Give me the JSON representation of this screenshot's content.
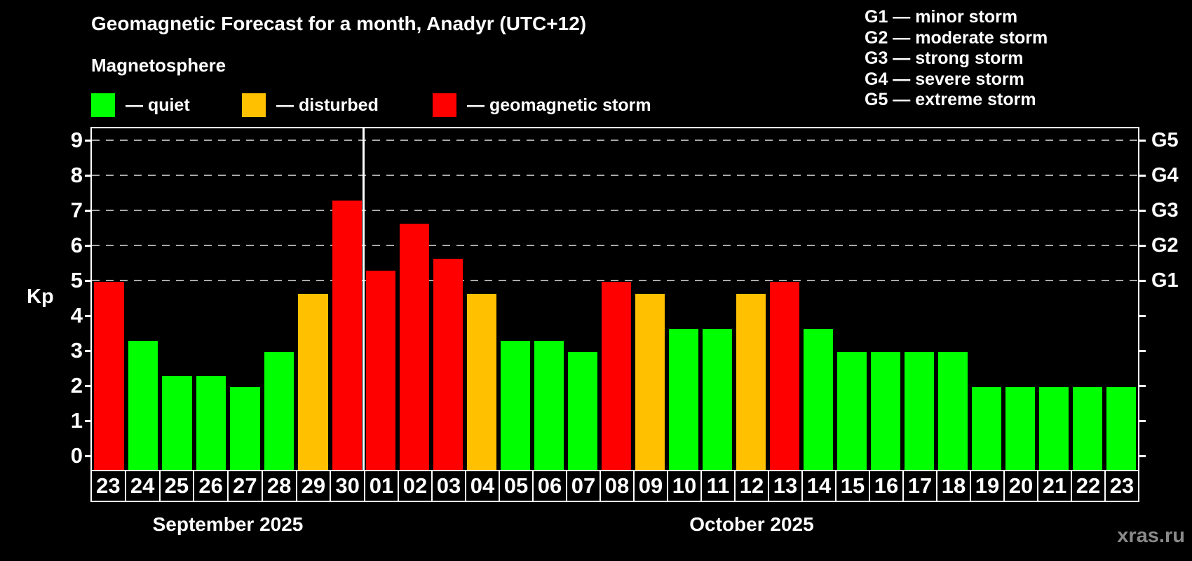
{
  "header": {
    "title": "Geomagnetic Forecast for a month, Anadyr (UTC+12)",
    "subtitle": "Magnetosphere"
  },
  "legend": {
    "quiet": {
      "label": "— quiet",
      "color": "#00ff00"
    },
    "disturbed": {
      "label": "— disturbed",
      "color": "#ffc000"
    },
    "storm": {
      "label": "— geomagnetic storm",
      "color": "#ff0000"
    }
  },
  "g_legend": [
    "G1 — minor storm",
    "G2 — moderate storm",
    "G3 — strong storm",
    "G4 — severe storm",
    "G5 — extreme storm"
  ],
  "axis": {
    "y_label": "Kp",
    "y_ticks": [
      0,
      1,
      2,
      3,
      4,
      5,
      6,
      7,
      8,
      9
    ],
    "gridline_kp": [
      5,
      6,
      7,
      8,
      9
    ],
    "g_labels": [
      {
        "label": "G1",
        "kp": 5
      },
      {
        "label": "G2",
        "kp": 6
      },
      {
        "label": "G3",
        "kp": 7
      },
      {
        "label": "G4",
        "kp": 8
      },
      {
        "label": "G5",
        "kp": 9
      }
    ]
  },
  "status_colors": {
    "quiet": "#00ff00",
    "disturbed": "#ffc000",
    "storm": "#ff0000"
  },
  "months": [
    {
      "name": "September 2025",
      "days": [
        {
          "day": "23",
          "value": 5.0,
          "status": "storm"
        },
        {
          "day": "24",
          "value": 3.33,
          "status": "quiet"
        },
        {
          "day": "25",
          "value": 2.33,
          "status": "quiet"
        },
        {
          "day": "26",
          "value": 2.33,
          "status": "quiet"
        },
        {
          "day": "27",
          "value": 2.0,
          "status": "quiet"
        },
        {
          "day": "28",
          "value": 3.0,
          "status": "quiet"
        },
        {
          "day": "29",
          "value": 4.67,
          "status": "disturbed"
        },
        {
          "day": "30",
          "value": 7.33,
          "status": "storm"
        }
      ]
    },
    {
      "name": "October 2025",
      "days": [
        {
          "day": "01",
          "value": 5.33,
          "status": "storm"
        },
        {
          "day": "02",
          "value": 6.67,
          "status": "storm"
        },
        {
          "day": "03",
          "value": 5.67,
          "status": "storm"
        },
        {
          "day": "04",
          "value": 4.67,
          "status": "disturbed"
        },
        {
          "day": "05",
          "value": 3.33,
          "status": "quiet"
        },
        {
          "day": "06",
          "value": 3.33,
          "status": "quiet"
        },
        {
          "day": "07",
          "value": 3.0,
          "status": "quiet"
        },
        {
          "day": "08",
          "value": 5.0,
          "status": "storm"
        },
        {
          "day": "09",
          "value": 4.67,
          "status": "disturbed"
        },
        {
          "day": "10",
          "value": 3.67,
          "status": "quiet"
        },
        {
          "day": "11",
          "value": 3.67,
          "status": "quiet"
        },
        {
          "day": "12",
          "value": 4.67,
          "status": "disturbed"
        },
        {
          "day": "13",
          "value": 5.0,
          "status": "storm"
        },
        {
          "day": "14",
          "value": 3.67,
          "status": "quiet"
        },
        {
          "day": "15",
          "value": 3.0,
          "status": "quiet"
        },
        {
          "day": "16",
          "value": 3.0,
          "status": "quiet"
        },
        {
          "day": "17",
          "value": 3.0,
          "status": "quiet"
        },
        {
          "day": "18",
          "value": 3.0,
          "status": "quiet"
        },
        {
          "day": "19",
          "value": 2.0,
          "status": "quiet"
        },
        {
          "day": "20",
          "value": 2.0,
          "status": "quiet"
        },
        {
          "day": "21",
          "value": 2.0,
          "status": "quiet"
        },
        {
          "day": "22",
          "value": 2.0,
          "status": "quiet"
        },
        {
          "day": "23",
          "value": 2.0,
          "status": "quiet"
        }
      ]
    }
  ],
  "watermark": "xras.ru",
  "chart_data": {
    "type": "bar",
    "title": "Geomagnetic Forecast for a month, Anadyr (UTC+12)",
    "xlabel": "",
    "ylabel": "Kp",
    "ylim": [
      0,
      9.35
    ],
    "y_ticks": [
      0,
      1,
      2,
      3,
      4,
      5,
      6,
      7,
      8,
      9
    ],
    "gridlines_at_kp": [
      5,
      6,
      7,
      8,
      9
    ],
    "right_axis_labels": {
      "G1": 5,
      "G2": 6,
      "G3": 7,
      "G4": 8,
      "G5": 9
    },
    "legend_position": "top",
    "legend": [
      {
        "label": "quiet",
        "color": "#00ff00"
      },
      {
        "label": "disturbed",
        "color": "#ffc000"
      },
      {
        "label": "geomagnetic storm",
        "color": "#ff0000"
      }
    ],
    "categories": [
      "Sep 23",
      "Sep 24",
      "Sep 25",
      "Sep 26",
      "Sep 27",
      "Sep 28",
      "Sep 29",
      "Sep 30",
      "Oct 01",
      "Oct 02",
      "Oct 03",
      "Oct 04",
      "Oct 05",
      "Oct 06",
      "Oct 07",
      "Oct 08",
      "Oct 09",
      "Oct 10",
      "Oct 11",
      "Oct 12",
      "Oct 13",
      "Oct 14",
      "Oct 15",
      "Oct 16",
      "Oct 17",
      "Oct 18",
      "Oct 19",
      "Oct 20",
      "Oct 21",
      "Oct 22",
      "Oct 23"
    ],
    "values": [
      5.0,
      3.33,
      2.33,
      2.33,
      2.0,
      3.0,
      4.67,
      7.33,
      5.33,
      6.67,
      5.67,
      4.67,
      3.33,
      3.33,
      3.0,
      5.0,
      4.67,
      3.67,
      3.67,
      4.67,
      5.0,
      3.67,
      3.0,
      3.0,
      3.0,
      3.0,
      2.0,
      2.0,
      2.0,
      2.0,
      2.0
    ],
    "statuses": [
      "storm",
      "quiet",
      "quiet",
      "quiet",
      "quiet",
      "quiet",
      "disturbed",
      "storm",
      "storm",
      "storm",
      "storm",
      "disturbed",
      "quiet",
      "quiet",
      "quiet",
      "storm",
      "disturbed",
      "quiet",
      "quiet",
      "disturbed",
      "storm",
      "quiet",
      "quiet",
      "quiet",
      "quiet",
      "quiet",
      "quiet",
      "quiet",
      "quiet",
      "quiet",
      "quiet"
    ]
  }
}
